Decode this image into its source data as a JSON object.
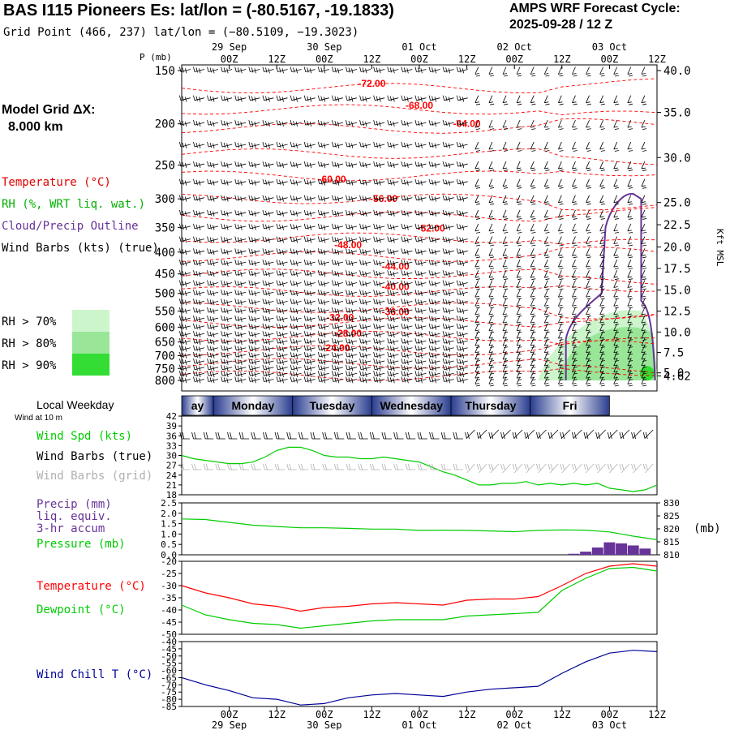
{
  "header": {
    "title": "BAS I115 Pioneers Es:  lat/lon = (-80.5167, -19.1833)",
    "subtitle": "Grid Point (466, 237) lat/lon = (−80.5109, −19.3023)",
    "cycle_label": "AMPS WRF Forecast Cycle:",
    "cycle_value": "2025-09-28 / 12  Z"
  },
  "left_legend": {
    "grid_label": "Model Grid ΔX:",
    "grid_value": "8.000 km",
    "temperature": "Temperature (°C)",
    "rh": "RH (%, WRT liq. wat.)",
    "cloud": "Cloud/Precip Outline",
    "wind": "Wind Barbs (kts) (true)",
    "rh_levels": [
      {
        "label": "RH > 70%",
        "color": "#ccf5cc"
      },
      {
        "label": "RH > 80%",
        "color": "#99e699"
      },
      {
        "label": "RH > 90%",
        "color": "#33dd33"
      }
    ]
  },
  "colors": {
    "temperature": "#ff0000",
    "dewpoint": "#00cc00",
    "rh_fill": "#66dd66",
    "cloud_outline": "#663399",
    "wind_speed": "#00cc00",
    "wind_barbs_true": "#000000",
    "wind_barbs_grid": "#b0b0b0",
    "precip": "#663399",
    "pressure": "#00cc00",
    "wind_chill": "#000099",
    "weekday_band_dark": "#2a3d8f",
    "weekday_band_light": "#ffffff"
  },
  "time_axis": {
    "ticks": [
      "00Z",
      "12Z",
      "00Z",
      "12Z",
      "00Z",
      "12Z",
      "00Z",
      "12Z",
      "00Z",
      "12Z"
    ],
    "tick_hours": [
      12,
      24,
      36,
      48,
      60,
      72,
      84,
      96,
      108,
      120
    ],
    "dates": [
      "29 Sep",
      "30 Sep",
      "01 Oct",
      "02 Oct",
      "03 Oct"
    ],
    "date_hours": [
      12,
      36,
      60,
      84,
      108
    ],
    "start_hour": 0,
    "end_hour": 120
  },
  "weekday_strip": {
    "label": "Local Weekday",
    "days": [
      "ay",
      "Monday",
      "Tuesday",
      "Wednesday",
      "Thursday",
      "Fri"
    ]
  },
  "chart_data": [
    {
      "type": "contour",
      "panel": "vertical cross-section",
      "y_axis_label": "P (mb)",
      "y_ticks": [
        150,
        200,
        250,
        300,
        350,
        400,
        450,
        500,
        550,
        600,
        650,
        700,
        750,
        800
      ],
      "right_axis_label": "Kft MSL",
      "right_ticks": [
        {
          "label": "40.0",
          "p": 150
        },
        {
          "label": "35.0",
          "p": 188
        },
        {
          "label": "30.0",
          "p": 240
        },
        {
          "label": "25.0",
          "p": 306
        },
        {
          "label": "22.5",
          "p": 345
        },
        {
          "label": "20.0",
          "p": 389
        },
        {
          "label": "17.5",
          "p": 437
        },
        {
          "label": "15.0",
          "p": 491
        },
        {
          "label": "12.5",
          "p": 550
        },
        {
          "label": "10.0",
          "p": 616
        },
        {
          "label": "7.5",
          "p": 688
        },
        {
          "label": "5.0",
          "p": 768
        },
        {
          "label": "4.62",
          "p": 781
        }
      ],
      "temperature_contours": [
        {
          "label": "-72.00",
          "hour": 48,
          "p": 161
        },
        {
          "label": "-68.00",
          "hour": 60,
          "p": 181
        },
        {
          "label": "-64.00",
          "hour": 72,
          "p": 200
        },
        {
          "label": "-60.00",
          "hour": 38,
          "p": 270
        },
        {
          "label": "-56.00",
          "hour": 51,
          "p": 300
        },
        {
          "label": "-52.00",
          "hour": 63,
          "p": 352
        },
        {
          "label": "-48.00",
          "hour": 42,
          "p": 385
        },
        {
          "label": "-44.00",
          "hour": 54,
          "p": 432
        },
        {
          "label": "-40.00",
          "hour": 54,
          "p": 482
        },
        {
          "label": "-36.00",
          "hour": 54,
          "p": 552
        },
        {
          "label": "-32.00",
          "hour": 40,
          "p": 570
        },
        {
          "label": "-28.00",
          "hour": 42,
          "p": 620
        },
        {
          "label": "-24.00",
          "hour": 39,
          "p": 672
        }
      ]
    },
    {
      "type": "line",
      "panel": "wind speed",
      "title": "Wind at 10 m",
      "label": "Wind Spd (kts)",
      "label2": "Wind Barbs (true)",
      "label3": "Wind Barbs (grid)",
      "ylim": [
        18,
        42
      ],
      "y_ticks": [
        18,
        21,
        24,
        27,
        30,
        33,
        36,
        39,
        42
      ],
      "x": [
        0,
        3,
        6,
        9,
        12,
        15,
        18,
        21,
        24,
        27,
        30,
        33,
        36,
        39,
        42,
        45,
        48,
        51,
        54,
        57,
        60,
        63,
        66,
        69,
        72,
        75,
        78,
        81,
        84,
        87,
        90,
        93,
        96,
        99,
        102,
        105,
        108,
        111,
        114,
        117,
        120
      ],
      "series": [
        {
          "values": [
            30,
            29,
            28.5,
            28,
            27.5,
            27.5,
            28,
            29.5,
            31.5,
            32.5,
            32.5,
            31.5,
            30,
            29.5,
            29.5,
            29,
            29,
            29.5,
            29,
            28.5,
            28,
            26.5,
            25,
            24,
            22.5,
            21,
            21,
            21.5,
            21.5,
            22,
            21,
            21.5,
            21,
            21.5,
            21,
            21.5,
            20,
            19.5,
            19,
            19.5,
            21
          ]
        }
      ]
    },
    {
      "type": "bar",
      "panel": "precip and pressure",
      "label": "Precip (mm)",
      "label2": "liq. equiv.",
      "label3": "3-hr accum",
      "label4": "Pressure (mb)",
      "ylim": [
        0,
        2.5
      ],
      "y_ticks": [
        "0.0",
        "0.5",
        "1.0",
        "1.5",
        "2.0",
        "2.5"
      ],
      "y2lim": [
        810,
        830
      ],
      "y2_ticks": [
        "810",
        "815",
        "820",
        "825",
        "830"
      ],
      "y2_unit": "(mb)",
      "precip_x": [
        99,
        102,
        105,
        108,
        111,
        114,
        117
      ],
      "precip_values": [
        0.05,
        0.15,
        0.35,
        0.6,
        0.55,
        0.45,
        0.3
      ],
      "pressure_x": [
        0,
        6,
        12,
        18,
        24,
        30,
        36,
        42,
        48,
        54,
        60,
        66,
        72,
        78,
        84,
        90,
        96,
        102,
        108,
        114,
        120
      ],
      "pressure_values": [
        823.8,
        823.6,
        822.5,
        821.4,
        820.9,
        820.4,
        820.4,
        820.2,
        819.9,
        819.9,
        819.4,
        819.5,
        819.4,
        819.2,
        818.9,
        819.4,
        819.6,
        819.5,
        818.8,
        817.2,
        815.8
      ]
    },
    {
      "type": "line",
      "panel": "temperature and dewpoint",
      "label": "Temperature (°C)",
      "label2": "Dewpoint (°C)",
      "ylim": [
        -50,
        -20
      ],
      "y_ticks": [
        -20,
        -25,
        -30,
        -35,
        -40,
        -45,
        -50
      ],
      "x": [
        0,
        6,
        12,
        18,
        24,
        30,
        36,
        42,
        48,
        54,
        60,
        66,
        72,
        78,
        84,
        90,
        96,
        102,
        108,
        114,
        120
      ],
      "series": [
        {
          "name": "Temperature",
          "values": [
            -30,
            -33,
            -35,
            -37.5,
            -38.5,
            -40.5,
            -39,
            -38.5,
            -37.5,
            -37,
            -37.5,
            -38,
            -36,
            -35.5,
            -35.5,
            -34.5,
            -30,
            -25,
            -22,
            -21,
            -22
          ]
        },
        {
          "name": "Dewpoint",
          "values": [
            -38,
            -42,
            -44,
            -45.5,
            -46,
            -47.5,
            -46.5,
            -45.5,
            -44.5,
            -44,
            -44,
            -44,
            -42.5,
            -42,
            -41.5,
            -41,
            -32,
            -27,
            -23,
            -22.5,
            -24
          ]
        }
      ]
    },
    {
      "type": "line",
      "panel": "wind chill",
      "label": "Wind Chill T (°C)",
      "ylim": [
        -85,
        -40
      ],
      "y_ticks": [
        -40,
        -45,
        -50,
        -55,
        -60,
        -65,
        -70,
        -75,
        -80,
        -85
      ],
      "x": [
        0,
        6,
        12,
        18,
        24,
        30,
        36,
        42,
        48,
        54,
        60,
        66,
        72,
        78,
        84,
        90,
        96,
        102,
        108,
        114,
        120
      ],
      "series": [
        {
          "name": "Wind Chill",
          "values": [
            -65,
            -70,
            -74,
            -79,
            -80,
            -84,
            -83,
            -79,
            -77,
            -76,
            -77,
            -78,
            -75,
            -73,
            -72,
            -71,
            -62,
            -54,
            -48,
            -46,
            -47
          ]
        }
      ]
    }
  ]
}
